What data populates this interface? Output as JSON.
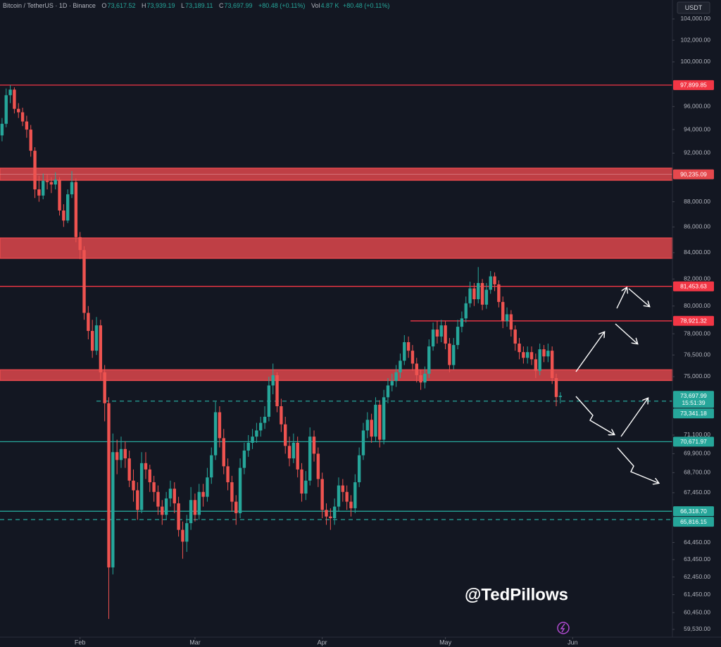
{
  "chart_data": {
    "type": "candlestick",
    "header": {
      "symbol": "Bitcoin / TetherUS · 1D · Binance",
      "ohlc": [
        {
          "label": "O",
          "value": "73,617.52"
        },
        {
          "label": "H",
          "value": "73,939.19"
        },
        {
          "label": "L",
          "value": "73,189.11"
        },
        {
          "label": "C",
          "value": "73,697.99"
        }
      ],
      "change": "+80.48 (+0.11%)",
      "volume_label": "Vol",
      "volume": "4.87 K",
      "volume_change": "+80.48 (+0.11%)"
    },
    "currency": "USDT",
    "watermark": "@TedPillows",
    "x": [
      0,
      1,
      2,
      3,
      4,
      5,
      6,
      7,
      8,
      9,
      10,
      11,
      12,
      13,
      14,
      15,
      16,
      17,
      18,
      19,
      20,
      21,
      22,
      23,
      24,
      25,
      26,
      27,
      28,
      29,
      30,
      31,
      32,
      33,
      34,
      35,
      36,
      37,
      38,
      39,
      40,
      41,
      42,
      43,
      44,
      45,
      46,
      47,
      48,
      49,
      50,
      51,
      52,
      53,
      54,
      55,
      56,
      57,
      58,
      59,
      60,
      61,
      62,
      63,
      64,
      65,
      66,
      67,
      68,
      69,
      70,
      71,
      72,
      73,
      74,
      75,
      76,
      77,
      78,
      79,
      80,
      81,
      82,
      83,
      84,
      85,
      86,
      87,
      88,
      89,
      90,
      91,
      92,
      93,
      94,
      95,
      96,
      97,
      98,
      99,
      100,
      101,
      102,
      103,
      104,
      105,
      106,
      107,
      108,
      109,
      110,
      111,
      112,
      113,
      114,
      115,
      116,
      117,
      118,
      119,
      120,
      121,
      122,
      123,
      124,
      125,
      126,
      127,
      128,
      129,
      130,
      131,
      132,
      133,
      134,
      135,
      136
    ],
    "open": [
      93500,
      94500,
      97000,
      97500,
      95800,
      95500,
      94700,
      94000,
      92200,
      89000,
      88500,
      89700,
      89600,
      89400,
      89800,
      87300,
      86500,
      88600,
      89600,
      85200,
      84200,
      79500,
      78200,
      76800,
      78600,
      75300,
      73200,
      63000,
      70000,
      69500,
      70200,
      69600,
      68200,
      67600,
      66400,
      69300,
      68900,
      68100,
      67500,
      66600,
      66100,
      67100,
      67700,
      66800,
      65200,
      64500,
      65600,
      67000,
      66100,
      67500,
      67200,
      68400,
      69800,
      72600,
      70900,
      69100,
      68100,
      66900,
      66200,
      69000,
      70100,
      70600,
      71000,
      71400,
      71900,
      72300,
      74400,
      75100,
      73000,
      71800,
      70400,
      69600,
      70600,
      68900,
      67400,
      68200,
      71000,
      69900,
      68300,
      66400,
      66000,
      65900,
      66600,
      67900,
      67500,
      66900,
      66500,
      68100,
      69800,
      71400,
      72100,
      71000,
      73100,
      70800,
      73600,
      74400,
      74700,
      75300,
      76100,
      77400,
      76800,
      75900,
      75100,
      74600,
      75200,
      77100,
      78300,
      77800,
      78600,
      77300,
      75800,
      77200,
      78500,
      79100,
      80200,
      81300,
      80500,
      81700,
      80100,
      81200,
      82200,
      81600,
      80300,
      78900,
      79400,
      78300,
      77300,
      76700,
      76300,
      76700,
      76200,
      75400,
      76900,
      76400,
      76800,
      74900,
      73617.52
    ],
    "high": [
      95000,
      97600,
      97900,
      97700,
      96300,
      95900,
      95200,
      94400,
      92500,
      90100,
      90300,
      90200,
      90000,
      90400,
      90000,
      87800,
      89000,
      90500,
      89900,
      85600,
      84500,
      80000,
      79000,
      79200,
      79000,
      75800,
      73600,
      71200,
      70800,
      71000,
      70700,
      70100,
      68900,
      68100,
      70000,
      70000,
      69200,
      68500,
      67900,
      67000,
      67500,
      68200,
      68100,
      67200,
      65700,
      66100,
      67800,
      67400,
      68000,
      68000,
      69000,
      70300,
      73300,
      73000,
      71500,
      69600,
      68500,
      67300,
      69600,
      70600,
      71100,
      71500,
      71900,
      72300,
      73000,
      75000,
      75900,
      75300,
      73500,
      72300,
      71000,
      71200,
      71000,
      69300,
      68800,
      71600,
      71400,
      70300,
      68700,
      66800,
      66500,
      67100,
      68400,
      68300,
      67900,
      67300,
      68600,
      70300,
      71900,
      72600,
      72500,
      73600,
      73400,
      74100,
      74900,
      75200,
      75800,
      76600,
      77900,
      77800,
      77200,
      76300,
      75500,
      75700,
      77600,
      78800,
      78900,
      79000,
      78900,
      77700,
      77700,
      79000,
      79600,
      80700,
      81800,
      81700,
      82900,
      82000,
      81700,
      82600,
      82500,
      81900,
      80700,
      79900,
      79700,
      78600,
      77700,
      77100,
      77100,
      77100,
      76600,
      77300,
      77200,
      77300,
      77100,
      75200,
      73939.19
    ],
    "low": [
      93000,
      94200,
      96300,
      95400,
      95000,
      94300,
      93300,
      91700,
      88300,
      88000,
      88200,
      89000,
      88700,
      89000,
      86900,
      86000,
      86300,
      88300,
      84800,
      83500,
      79000,
      77600,
      76300,
      76500,
      74800,
      72000,
      60100,
      62600,
      68600,
      69000,
      69000,
      67800,
      66900,
      65800,
      66200,
      68300,
      67500,
      66900,
      66100,
      65500,
      65800,
      66600,
      66200,
      64800,
      63500,
      63900,
      65200,
      65700,
      65800,
      66600,
      66900,
      68000,
      69500,
      70300,
      68600,
      67600,
      66300,
      65500,
      65900,
      68600,
      69700,
      70200,
      70600,
      71000,
      71500,
      72000,
      73800,
      72600,
      71300,
      69900,
      69100,
      69300,
      68400,
      66900,
      67000,
      67900,
      69400,
      67800,
      65900,
      65500,
      65200,
      65500,
      66300,
      66900,
      66400,
      66000,
      66200,
      67800,
      69500,
      70900,
      70600,
      70700,
      70300,
      70500,
      73200,
      74000,
      74300,
      74900,
      75800,
      76300,
      75400,
      74600,
      74100,
      74200,
      74900,
      76800,
      77300,
      77400,
      76900,
      75300,
      75500,
      76900,
      78100,
      78800,
      79900,
      80000,
      80200,
      79700,
      79800,
      80900,
      81100,
      79900,
      78400,
      78500,
      77800,
      76800,
      76200,
      75900,
      75900,
      75800,
      74900,
      75100,
      76000,
      76000,
      74500,
      73000,
      73189.11
    ],
    "close": [
      94500,
      97000,
      97500,
      95800,
      95500,
      94700,
      94000,
      92200,
      89000,
      88500,
      89700,
      89600,
      89400,
      89800,
      87300,
      86500,
      88600,
      89600,
      85200,
      84200,
      79500,
      78200,
      76800,
      78600,
      75300,
      73200,
      63000,
      70000,
      69500,
      70200,
      69600,
      68200,
      67600,
      66400,
      69300,
      68900,
      68100,
      67500,
      66600,
      66100,
      67100,
      67700,
      66800,
      65200,
      64500,
      65600,
      67000,
      66100,
      67500,
      67200,
      68400,
      69800,
      72600,
      70900,
      69100,
      68100,
      66900,
      66200,
      69000,
      70100,
      70600,
      71000,
      71400,
      71900,
      72300,
      74400,
      75100,
      73000,
      71800,
      70400,
      69600,
      70600,
      68900,
      67400,
      68200,
      71000,
      69900,
      68300,
      66400,
      66000,
      65900,
      66600,
      67900,
      67500,
      66900,
      66500,
      68100,
      69800,
      71400,
      72100,
      71000,
      73100,
      70800,
      73600,
      74400,
      74700,
      75300,
      76100,
      77400,
      76800,
      75900,
      75100,
      74600,
      75200,
      77100,
      78300,
      77800,
      78600,
      77300,
      75800,
      77200,
      78500,
      79100,
      80200,
      81300,
      80500,
      81700,
      80100,
      81200,
      82200,
      81600,
      80300,
      78900,
      79400,
      78300,
      77300,
      76700,
      76300,
      76700,
      76200,
      75400,
      76900,
      76400,
      76800,
      74900,
      73617.52,
      73697.99
    ],
    "up_color": "#26a69a",
    "down_color": "#ef5350",
    "xlim": [
      -0.5,
      163.3
    ],
    "xticks": [
      {
        "value": 19,
        "label": "Feb"
      },
      {
        "value": 47,
        "label": "Mar"
      },
      {
        "value": 78,
        "label": "Apr"
      },
      {
        "value": 108,
        "label": "May"
      },
      {
        "value": 139,
        "label": "Jun"
      }
    ],
    "ylim": [
      59110,
      105820
    ],
    "log_scale": true,
    "grid": false,
    "yticks": [
      {
        "value": 104000,
        "label": "104,000.00"
      },
      {
        "value": 102000,
        "label": "102,000.00"
      },
      {
        "value": 100000,
        "label": "100,000.00"
      },
      {
        "value": 96000,
        "label": "96,000.00"
      },
      {
        "value": 94000,
        "label": "94,000.00"
      },
      {
        "value": 92000,
        "label": "92,000.00"
      },
      {
        "value": 88000,
        "label": "88,000.00"
      },
      {
        "value": 86000,
        "label": "86,000.00"
      },
      {
        "value": 84000,
        "label": "84,000.00"
      },
      {
        "value": 82000,
        "label": "82,000.00"
      },
      {
        "value": 80000,
        "label": "80,000.00"
      },
      {
        "value": 78000,
        "label": "78,000.00"
      },
      {
        "value": 76500,
        "label": "76,500.00"
      },
      {
        "value": 75000,
        "label": "75,000.00"
      },
      {
        "value": 71100,
        "label": "71,100.00"
      },
      {
        "value": 69900,
        "label": "69,900.00"
      },
      {
        "value": 68700,
        "label": "68,700.00"
      },
      {
        "value": 67450,
        "label": "67,450.00"
      },
      {
        "value": 64450,
        "label": "64,450.00"
      },
      {
        "value": 63450,
        "label": "63,450.00"
      },
      {
        "value": 62450,
        "label": "62,450.00"
      },
      {
        "value": 61450,
        "label": "61,450.00"
      },
      {
        "value": 60450,
        "label": "60,450.00"
      },
      {
        "value": 59530,
        "label": "59,530.00"
      }
    ],
    "zones": [
      {
        "low": 89750,
        "high": 90740,
        "color": "#e5484d",
        "tag": {
          "value": 90235.09,
          "label": "90,235.09"
        }
      },
      {
        "low": 83570,
        "high": 85130,
        "color": "#e5484d"
      },
      {
        "low": 74740,
        "high": 75470,
        "color": "#e5484d"
      }
    ],
    "levels": [
      {
        "value": 97899.85,
        "label": "97,899.85",
        "color": "#f23645",
        "dashed": false
      },
      {
        "value": 81453.63,
        "label": "81,453.63",
        "color": "#f23645",
        "dashed": false
      },
      {
        "value": 78921.32,
        "label": "78,921.32",
        "color": "#f23645",
        "dashed": false,
        "x_start": 99.5
      },
      {
        "value": 73341.18,
        "label": "73,341.18",
        "color": "#26a69a",
        "dashed": true,
        "x_start": 23
      },
      {
        "value": 70671.97,
        "label": "70,671.97",
        "color": "#26a69a",
        "dashed": false
      },
      {
        "value": 66318.7,
        "label": "66,318.70",
        "color": "#26a69a",
        "dashed": false
      },
      {
        "value": 65816.15,
        "label": "65,816.15",
        "color": "#26a69a",
        "dashed": true
      }
    ],
    "last_price": {
      "value": 73697.99,
      "label": "73,697.99",
      "countdown": "15:51:39",
      "color": "#26a69a"
    }
  }
}
